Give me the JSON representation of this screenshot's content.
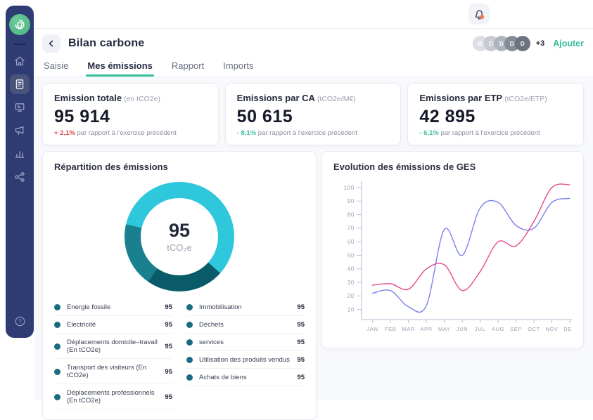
{
  "colors": {
    "sidebar_navy": "#2F3B73",
    "accent_teal": "#35BF96",
    "delta_up_red": "#E04B50",
    "delta_down_green": "#41C1A0",
    "notification_dot": "#F27A5B",
    "logo_green": "#4BB181"
  },
  "sidebar": {
    "logo": "spiral-logo",
    "items": [
      {
        "name": "home-icon",
        "active": false
      },
      {
        "name": "document-icon",
        "active": true
      },
      {
        "name": "dashboard-icon",
        "active": false
      },
      {
        "name": "megaphone-icon",
        "active": false
      },
      {
        "name": "bar-chart-icon",
        "active": false
      },
      {
        "name": "org-chart-icon",
        "active": false
      }
    ],
    "help": "help-icon"
  },
  "topbar": {
    "bell": "bell-icon"
  },
  "header": {
    "back": "‹",
    "title": "Bilan carbone",
    "avatars": [
      "JD",
      "D",
      "D",
      "D",
      "D"
    ],
    "overflow_count": "+3",
    "add_label": "Ajouter"
  },
  "tabs": [
    {
      "label": "Saisie",
      "active": false
    },
    {
      "label": "Mes émissions",
      "active": true
    },
    {
      "label": "Rapport",
      "active": false
    },
    {
      "label": "Imports",
      "active": false
    }
  ],
  "stats": [
    {
      "title": "Emission totale",
      "unit": "(en tCO2e)",
      "value": "95 914",
      "delta": "+ 2,1%",
      "direction": "up",
      "note": "par rapport à l'exercice précédent"
    },
    {
      "title": "Emissions par CA",
      "unit": "(tCO2e/M€)",
      "value": "50 615",
      "delta": "- 8,1%",
      "direction": "down",
      "note": "par rapport à l'exercice précédent"
    },
    {
      "title": "Emissions par ETP",
      "unit": "(tCO2e/ETP)",
      "value": "42 895",
      "delta": "- 6,1%",
      "direction": "down",
      "note": "par rapport à l'exercice précédent"
    }
  ],
  "chart_data": [
    {
      "type": "pie",
      "donut": true,
      "title": "Répartition des émissions",
      "center_label": "95",
      "center_unit": "tCO₂e",
      "start_angle_deg": -77,
      "slices": [
        {
          "name": "segment-principal",
          "value": 58,
          "color": "#2EC7DB"
        },
        {
          "name": "segment-fonce",
          "value": 23,
          "color": "#0A5B69"
        },
        {
          "name": "segment-moyen",
          "value": 19,
          "color": "#1A7F8E"
        }
      ],
      "legend_left": [
        {
          "label": "Energie fossile",
          "value": "95"
        },
        {
          "label": "Electricité",
          "value": "95"
        },
        {
          "label": "Déplacements domicile–travail (En tCO2e)",
          "value": "95"
        },
        {
          "label": "Transport des visiteurs (En tCO2e)",
          "value": "95"
        },
        {
          "label": "Déplacements professionnels (En tCO2e)",
          "value": "95"
        }
      ],
      "legend_right": [
        {
          "label": "Immobilisation",
          "value": "95"
        },
        {
          "label": "Déchets",
          "value": "95"
        },
        {
          "label": "services",
          "value": "95"
        },
        {
          "label": "Utilisation des produits vendus",
          "value": "95"
        },
        {
          "label": "Achats de biens",
          "value": "95"
        }
      ]
    },
    {
      "type": "line",
      "title": "Evolution des émissions de GES",
      "x": [
        "JAN",
        "FEB",
        "MAR",
        "APR",
        "MAY",
        "JUN",
        "JUL",
        "AUG",
        "SEP",
        "OCT",
        "NOV",
        "DEC"
      ],
      "yticks": [
        10,
        20,
        30,
        40,
        50,
        60,
        70,
        80,
        90,
        100
      ],
      "ylim": [
        0,
        105
      ],
      "grid": false,
      "legend": "none",
      "series": [
        {
          "name": "serie-bleue",
          "color": "#7C82E9",
          "values": [
            22,
            24,
            12,
            13,
            69,
            50,
            85,
            89,
            72,
            70,
            89,
            92
          ]
        },
        {
          "name": "serie-rose",
          "color": "#E2498F",
          "values": [
            28,
            29,
            25,
            40,
            43,
            24,
            38,
            60,
            57,
            75,
            100,
            102
          ]
        }
      ]
    }
  ]
}
